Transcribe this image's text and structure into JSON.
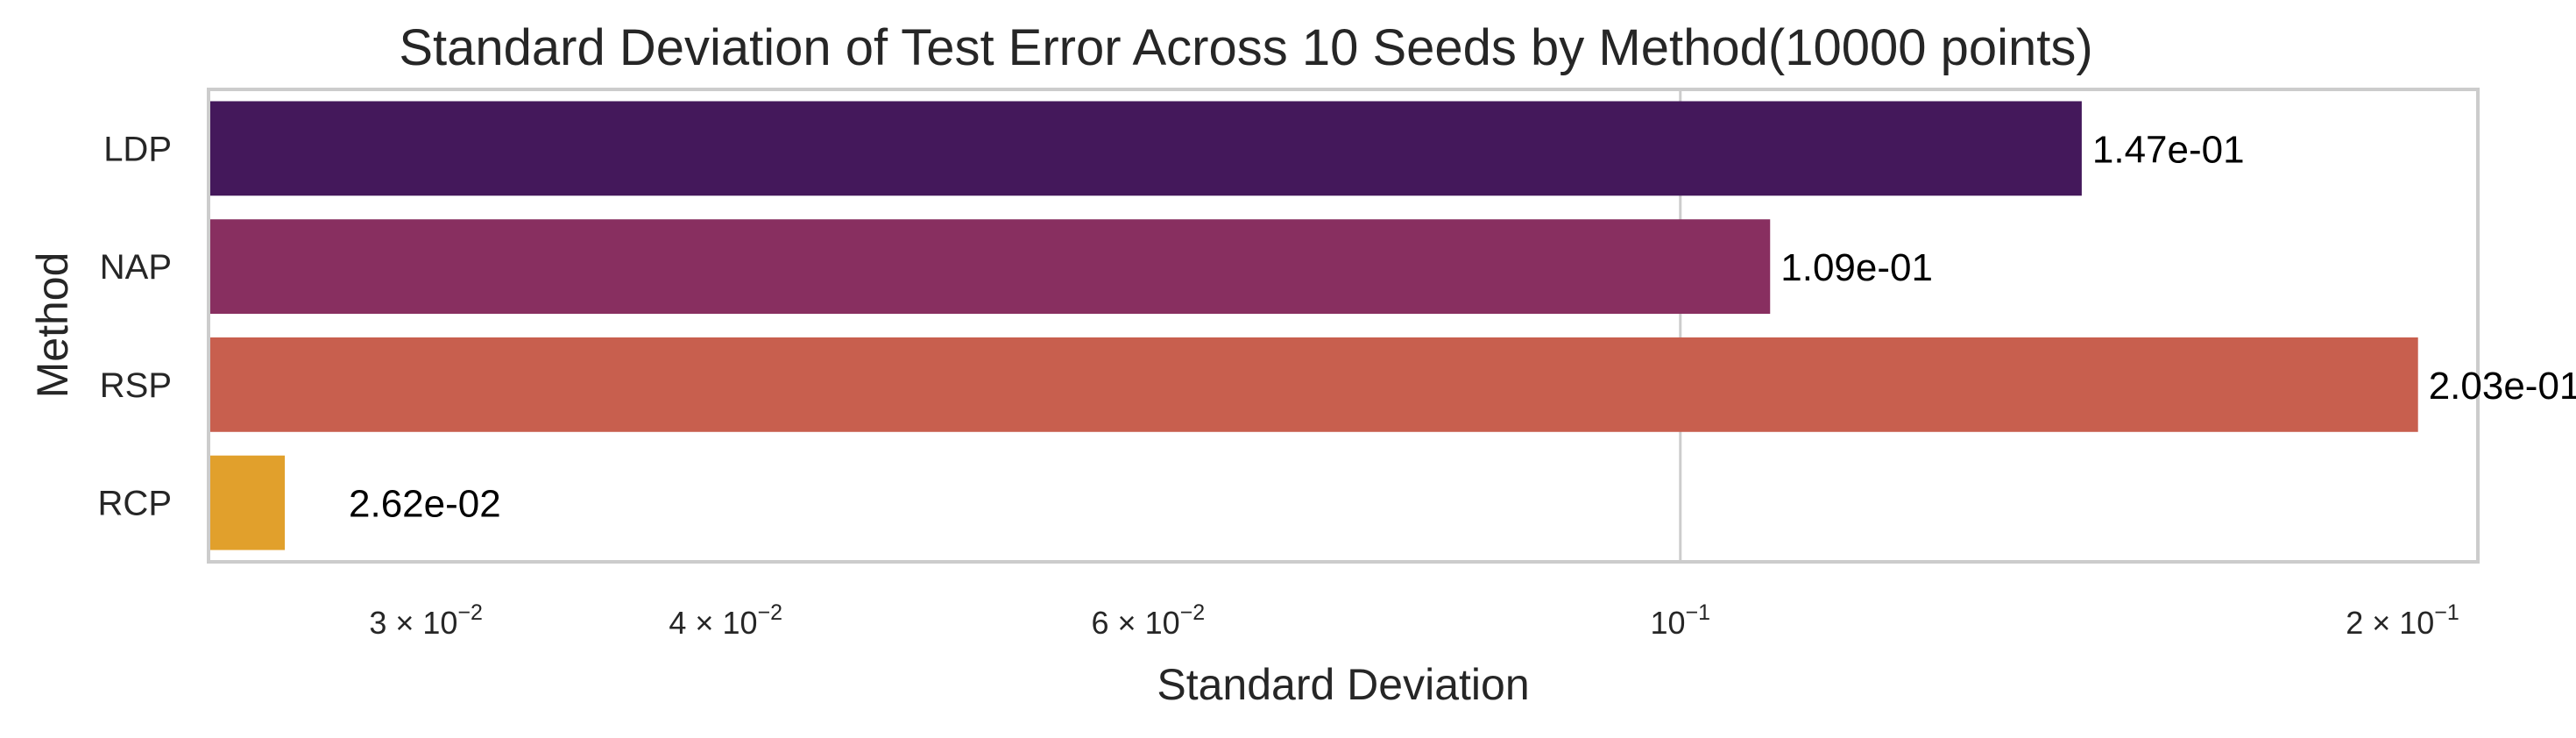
{
  "chart_data": {
    "type": "bar",
    "orientation": "horizontal",
    "title": "Standard Deviation of Test Error Across 10 Seeds by Method(10000 points)",
    "xlabel": "Standard Deviation",
    "ylabel": "Method",
    "x_scale": "log",
    "xlim": [
      0.02435,
      0.215
    ],
    "grid": "vertical major gridlines",
    "categories": [
      "LDP",
      "NAP",
      "RSP",
      "RCP"
    ],
    "values": [
      0.147,
      0.109,
      0.203,
      0.0262
    ],
    "value_labels": [
      "1.47e-01",
      "1.09e-01",
      "2.03e-01",
      "2.62e-02"
    ],
    "colors": [
      "#44185b",
      "#882f60",
      "#c85f4e",
      "#e1a02c"
    ],
    "x_ticks": [
      {
        "value": 0.03,
        "base": "3 × 10",
        "exp": "−2"
      },
      {
        "value": 0.04,
        "base": "4 × 10",
        "exp": "−2"
      },
      {
        "value": 0.06,
        "base": "6 × 10",
        "exp": "−2"
      },
      {
        "value": 0.1,
        "base": "10",
        "exp": "−1"
      },
      {
        "value": 0.2,
        "base": "2 × 10",
        "exp": "−1"
      }
    ],
    "major_gridlines": [
      0.1
    ]
  }
}
